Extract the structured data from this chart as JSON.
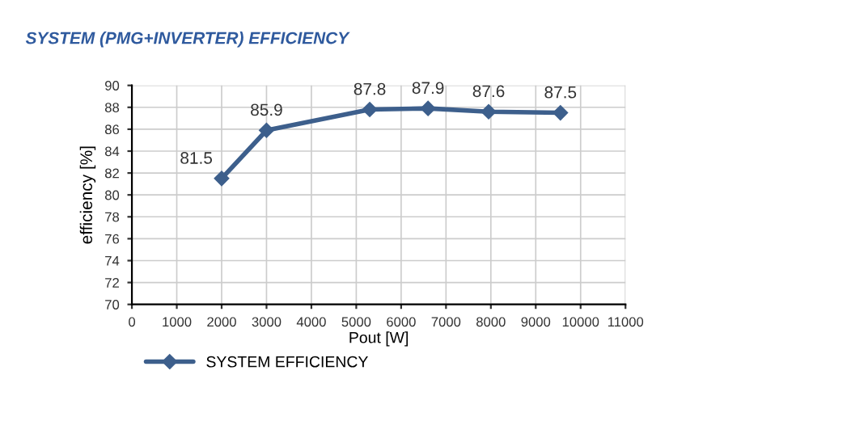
{
  "chart_data": {
    "type": "line",
    "title": "SYSTEM (PMG+INVERTER) EFFICIENCY",
    "xlabel": "Pout [W]",
    "ylabel": "efficiency [%]",
    "x": [
      2000,
      3000,
      5300,
      6600,
      7950,
      9550
    ],
    "series": [
      {
        "name": "SYSTEM EFFICIENCY",
        "color": "#3d5f8c",
        "values": [
          81.5,
          85.9,
          87.8,
          87.9,
          87.6,
          87.5
        ]
      }
    ],
    "xlim": [
      0,
      11000
    ],
    "xticks": [
      0,
      1000,
      2000,
      3000,
      4000,
      5000,
      6000,
      7000,
      8000,
      9000,
      10000,
      11000
    ],
    "ylim": [
      70,
      90
    ],
    "yticks": [
      70,
      72,
      74,
      76,
      78,
      80,
      82,
      84,
      86,
      88,
      90
    ],
    "grid": true,
    "legend": "bottom left",
    "marker": "diamond",
    "line_style": "solid",
    "data_labels": true
  }
}
